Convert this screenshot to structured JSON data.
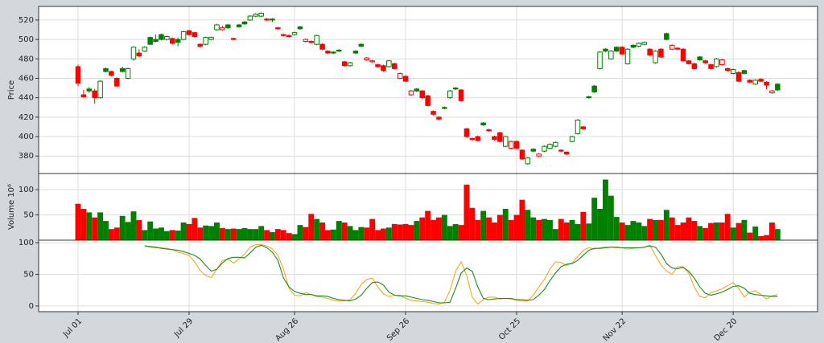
{
  "chart_data": [
    {
      "type": "candlestick",
      "ylabel": "Price",
      "up_color": "#008000",
      "down_color": "#ff0000",
      "ylim": [
        362,
        534
      ],
      "yticks": [
        380,
        400,
        420,
        440,
        460,
        480,
        500,
        520
      ],
      "grid": true,
      "open": [
        472,
        443,
        449,
        447,
        440,
        470,
        467,
        460,
        470,
        460,
        480,
        486,
        488,
        502,
        500,
        505,
        500,
        501,
        500,
        500,
        509,
        507,
        495,
        495,
        500,
        510,
        510,
        515,
        501,
        515,
        518,
        520,
        524,
        524,
        521,
        521,
        512,
        505,
        504,
        505,
        513,
        498,
        498,
        495,
        495,
        488,
        487,
        489,
        477,
        473,
        488,
        495,
        479,
        477,
        474,
        473,
        472,
        475,
        460,
        462,
        443,
        449,
        447,
        442,
        426,
        420,
        430,
        440,
        450,
        448,
        408,
        398,
        400,
        414,
        407,
        400,
        404,
        390,
        388,
        395,
        386,
        372,
        387,
        380,
        385,
        388,
        390,
        386,
        384,
        395,
        403,
        410,
        441,
        452,
        470,
        490,
        480,
        492,
        492,
        475,
        494,
        493,
        495,
        490,
        476,
        490,
        506,
        490,
        491,
        490,
        478,
        475,
        482,
        478,
        474,
        472,
        474,
        470,
        465,
        466,
        468,
        458,
        454,
        459,
        456,
        445,
        454
      ],
      "high": [
        474,
        448,
        451,
        449,
        458,
        471,
        468,
        461,
        472,
        471,
        493,
        490,
        493,
        503,
        505,
        506,
        504,
        502,
        502,
        509,
        510,
        508,
        496,
        503,
        503,
        516,
        514,
        516,
        502,
        516,
        519,
        525,
        527,
        528,
        522,
        522,
        513,
        506,
        505,
        508,
        514,
        501,
        499,
        505,
        496,
        489,
        488,
        490,
        478,
        477,
        489,
        496,
        482,
        479,
        475,
        474,
        479,
        476,
        466,
        463,
        448,
        450,
        448,
        443,
        427,
        421,
        431,
        448,
        451,
        449,
        409,
        399,
        401,
        415,
        408,
        401,
        405,
        401,
        396,
        396,
        387,
        379,
        388,
        383,
        391,
        393,
        395,
        387,
        385,
        401,
        418,
        411,
        442,
        453,
        488,
        491,
        489,
        493,
        493,
        491,
        495,
        497,
        498,
        491,
        489,
        491,
        507,
        495,
        492,
        491,
        479,
        476,
        483,
        479,
        475,
        481,
        480,
        471,
        470,
        467,
        469,
        459,
        459,
        460,
        457,
        448,
        455
      ],
      "low": [
        452,
        440,
        445,
        434,
        439,
        466,
        462,
        451,
        466,
        459,
        478,
        482,
        487,
        494,
        497,
        499,
        499,
        495,
        493,
        499,
        504,
        502,
        492,
        494,
        499,
        509,
        509,
        511,
        499,
        512,
        515,
        519,
        523,
        523,
        519,
        518,
        510,
        503,
        502,
        504,
        510,
        497,
        496,
        494,
        489,
        485,
        485,
        487,
        472,
        472,
        485,
        492,
        478,
        476,
        471,
        467,
        471,
        469,
        459,
        456,
        442,
        446,
        439,
        431,
        422,
        417,
        428,
        439,
        448,
        436,
        399,
        396,
        395,
        411,
        405,
        396,
        394,
        389,
        387,
        387,
        376,
        371,
        384,
        379,
        384,
        387,
        389,
        384,
        381,
        394,
        402,
        407,
        439,
        445,
        469,
        487,
        479,
        487,
        484,
        474,
        491,
        492,
        494,
        483,
        475,
        481,
        499,
        489,
        489,
        477,
        474,
        469,
        478,
        475,
        469,
        471,
        473,
        467,
        464,
        456,
        464,
        455,
        453,
        456,
        449,
        444,
        447
      ],
      "close": [
        455,
        441,
        447,
        440,
        457,
        467,
        463,
        452,
        467,
        470,
        492,
        483,
        492,
        495,
        498,
        500,
        503,
        496,
        497,
        508,
        505,
        503,
        493,
        502,
        502,
        515,
        512,
        512,
        500,
        513,
        516,
        524,
        526,
        527,
        520,
        520,
        511,
        504,
        503,
        507,
        511,
        500,
        497,
        504,
        490,
        486,
        486,
        488,
        473,
        476,
        486,
        493,
        481,
        478,
        472,
        468,
        478,
        470,
        465,
        457,
        447,
        447,
        440,
        432,
        423,
        418,
        429,
        447,
        449,
        437,
        400,
        397,
        396,
        412,
        406,
        397,
        395,
        400,
        395,
        388,
        377,
        378,
        385,
        382,
        390,
        392,
        394,
        385,
        382,
        400,
        417,
        408,
        440,
        446,
        487,
        488,
        488,
        488,
        485,
        490,
        492,
        496,
        497,
        484,
        488,
        482,
        500,
        494,
        490,
        478,
        475,
        470,
        479,
        476,
        470,
        480,
        479,
        468,
        469,
        457,
        465,
        456,
        458,
        457,
        453,
        447,
        448
      ]
    },
    {
      "type": "bar",
      "ylabel": "Volume  10⁶",
      "ylim": [
        0,
        132
      ],
      "yticks": [
        50,
        100
      ],
      "grid": true,
      "values": [
        72,
        62,
        55,
        45,
        55,
        38,
        22,
        25,
        48,
        36,
        57,
        40,
        20,
        37,
        23,
        25,
        18,
        20,
        19,
        35,
        32,
        44,
        25,
        29,
        28,
        35,
        24,
        22,
        23,
        22,
        24,
        22,
        22,
        28,
        20,
        16,
        22,
        20,
        14,
        12,
        30,
        26,
        52,
        42,
        35,
        20,
        21,
        38,
        35,
        28,
        20,
        26,
        25,
        42,
        20,
        23,
        25,
        32,
        31,
        32,
        30,
        38,
        45,
        58,
        40,
        45,
        50,
        28,
        32,
        30,
        110,
        64,
        40,
        58,
        45,
        35,
        50,
        62,
        40,
        50,
        80,
        60,
        45,
        40,
        42,
        40,
        22,
        42,
        35,
        40,
        32,
        56,
        33,
        84,
        62,
        120,
        88,
        46,
        35,
        30,
        38,
        35,
        28,
        42,
        40,
        40,
        60,
        45,
        30,
        35,
        45,
        38,
        28,
        24,
        34,
        35,
        35,
        52,
        25,
        34,
        40,
        15,
        27,
        8,
        10,
        35,
        22
      ]
    },
    {
      "type": "line",
      "ylim": [
        -9,
        104
      ],
      "yticks": [
        0,
        50,
        100
      ],
      "grid": true,
      "xlim": [
        -7.1,
        133.2
      ],
      "xticks": [
        {
          "value": 0,
          "label": "Jul 01"
        },
        {
          "value": 20,
          "label": "Jul 29"
        },
        {
          "value": 39,
          "label": "Aug 26"
        },
        {
          "value": 59,
          "label": "Sep 26"
        },
        {
          "value": 79,
          "label": "Oct 25"
        },
        {
          "value": 98,
          "label": "Nov 22"
        },
        {
          "value": 118,
          "label": "Dec 20"
        }
      ],
      "series": [
        {
          "color": "#f5a623",
          "values": [
            null,
            null,
            null,
            null,
            null,
            null,
            null,
            null,
            null,
            null,
            null,
            null,
            95,
            93,
            92,
            92,
            91,
            89,
            85,
            83,
            80,
            70,
            56,
            48,
            45,
            58,
            72,
            74,
            68,
            74,
            82,
            93,
            97,
            97,
            95,
            90,
            80,
            58,
            28,
            17,
            16,
            21,
            18,
            15,
            14,
            12,
            9,
            8,
            8,
            10,
            20,
            34,
            42,
            44,
            30,
            19,
            15,
            17,
            17,
            12,
            9,
            8,
            7,
            6,
            4,
            3,
            6,
            25,
            55,
            70,
            48,
            14,
            3,
            10,
            14,
            14,
            11,
            12,
            11,
            9,
            8,
            8,
            17,
            30,
            42,
            58,
            70,
            69,
            64,
            68,
            78,
            88,
            92,
            90,
            92,
            93,
            93,
            92,
            92,
            90,
            91,
            92,
            93,
            96,
            80,
            65,
            55,
            50,
            62,
            62,
            52,
            30,
            15,
            13,
            21,
            24,
            27,
            32,
            37,
            28,
            14,
            22,
            24,
            18,
            11,
            16,
            18
          ]
        },
        {
          "color": "#1e8a1e",
          "values": [
            null,
            null,
            null,
            null,
            null,
            null,
            null,
            null,
            null,
            null,
            null,
            null,
            95,
            94,
            93,
            91,
            90,
            89,
            88,
            86,
            83,
            80,
            74,
            64,
            55,
            58,
            68,
            75,
            77,
            77,
            76,
            84,
            93,
            96,
            92,
            85,
            72,
            44,
            30,
            23,
            20,
            18,
            18,
            16,
            16,
            15,
            12,
            10,
            9,
            8,
            11,
            17,
            28,
            37,
            38,
            33,
            22,
            17,
            16,
            16,
            14,
            12,
            10,
            9,
            7,
            5,
            5,
            6,
            28,
            52,
            60,
            55,
            30,
            12,
            10,
            11,
            12,
            12,
            12,
            10,
            10,
            9,
            10,
            17,
            26,
            40,
            52,
            62,
            66,
            67,
            72,
            80,
            88,
            91,
            91,
            92,
            93,
            93,
            92,
            92,
            92,
            92,
            93,
            95,
            93,
            82,
            67,
            60,
            59,
            61,
            55,
            44,
            30,
            20,
            17,
            19,
            22,
            26,
            31,
            32,
            28,
            20,
            18,
            17,
            16,
            15,
            15
          ]
        }
      ]
    }
  ]
}
